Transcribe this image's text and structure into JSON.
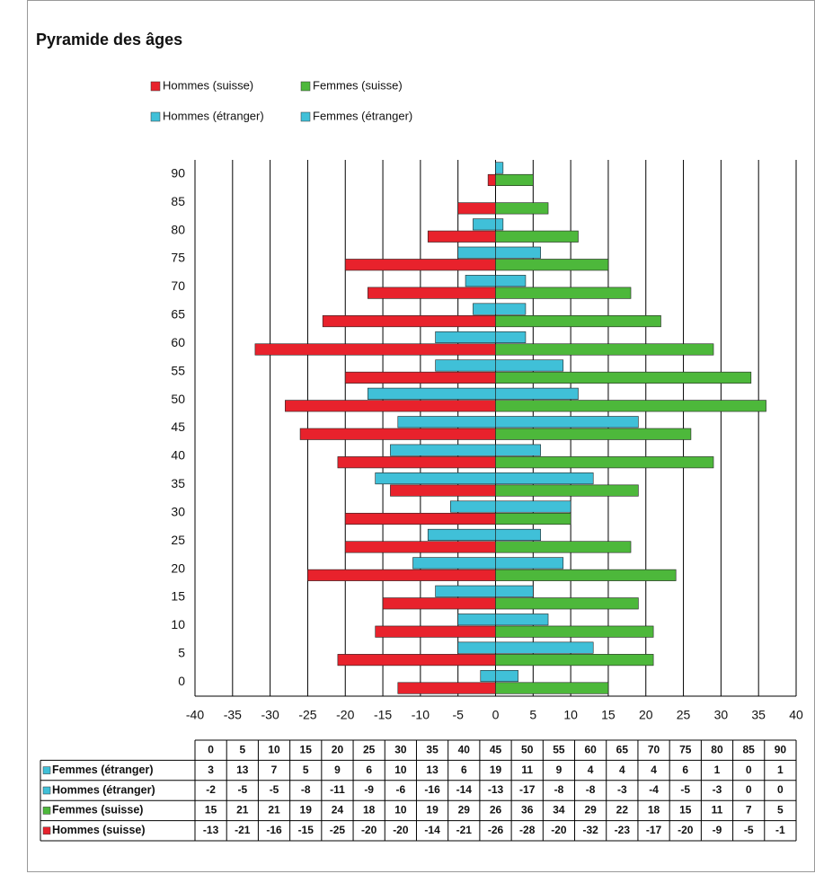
{
  "chart_data": {
    "type": "bar",
    "orientation": "horizontal",
    "title": "Pyramide des âges",
    "categories": [
      "0",
      "5",
      "10",
      "15",
      "20",
      "25",
      "30",
      "35",
      "40",
      "45",
      "50",
      "55",
      "60",
      "65",
      "70",
      "75",
      "80",
      "85",
      "90"
    ],
    "series": [
      {
        "name": "Hommes (suisse)",
        "color": "#e8222c",
        "values": [
          -13,
          -21,
          -16,
          -15,
          -25,
          -20,
          -20,
          -14,
          -21,
          -26,
          -28,
          -20,
          -32,
          -23,
          -17,
          -20,
          -9,
          -5,
          -1
        ]
      },
      {
        "name": "Femmes (suisse)",
        "color": "#4db83b",
        "values": [
          15,
          21,
          21,
          19,
          24,
          18,
          10,
          19,
          29,
          26,
          36,
          34,
          29,
          22,
          18,
          15,
          11,
          7,
          5
        ]
      },
      {
        "name": "Hommes (étranger)",
        "color": "#40c0d8",
        "values": [
          -2,
          -5,
          -5,
          -8,
          -11,
          -9,
          -6,
          -16,
          -14,
          -13,
          -17,
          -8,
          -8,
          -3,
          -4,
          -5,
          -3,
          0,
          0
        ]
      },
      {
        "name": "Femmes (étranger)",
        "color": "#40c0d8",
        "values": [
          3,
          13,
          7,
          5,
          9,
          6,
          10,
          13,
          6,
          19,
          11,
          9,
          4,
          4,
          4,
          6,
          1,
          0,
          1
        ]
      }
    ],
    "xlim": [
      -40,
      40
    ],
    "xticks": [
      -40,
      -35,
      -30,
      -25,
      -20,
      -15,
      -10,
      -5,
      0,
      5,
      10,
      15,
      20,
      25,
      30,
      35,
      40
    ],
    "grid": true,
    "data_table": true
  }
}
